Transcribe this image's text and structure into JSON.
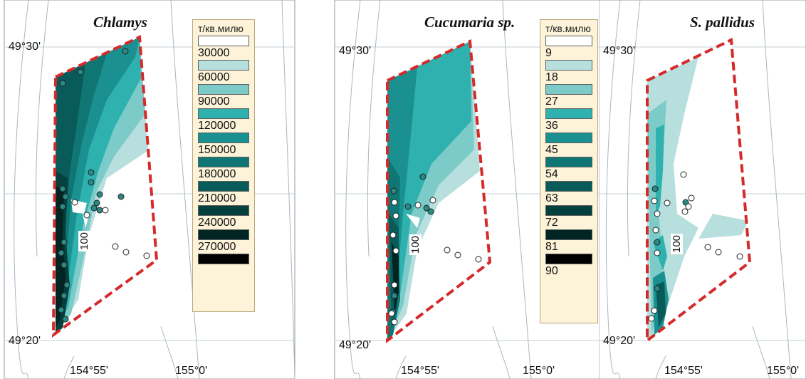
{
  "panels": [
    {
      "title": "Chlamys",
      "lat_top": "49°30'",
      "lat_bottom": "49°20'",
      "lon_left": "154°55'",
      "lon_right": "155°0'",
      "isobath": "100",
      "legend": {
        "unit": "т/кв.милю",
        "items": [
          {
            "label": "30000",
            "color": "#ffffff"
          },
          {
            "label": "60000",
            "color": "#b7dfdd"
          },
          {
            "label": "90000",
            "color": "#7ccbc9"
          },
          {
            "label": "120000",
            "color": "#2fb1af"
          },
          {
            "label": "150000",
            "color": "#1a9090"
          },
          {
            "label": "180000",
            "color": "#0f7674"
          },
          {
            "label": "210000",
            "color": "#085b58"
          },
          {
            "label": "240000",
            "color": "#04403d"
          },
          {
            "label": "270000",
            "color": "#012522"
          },
          {
            "label": "",
            "color": "#000000"
          }
        ]
      }
    },
    {
      "title": "Cucumaria sp.",
      "lat_top": "49°30'",
      "lat_bottom": "49°20'",
      "lon_left": "154°55'",
      "lon_right": "155°0'",
      "isobath": "100",
      "legend": {
        "unit": "т/кв.милю",
        "items": [
          {
            "label": "9",
            "color": "#ffffff"
          },
          {
            "label": "18",
            "color": "#b7dfdd"
          },
          {
            "label": "27",
            "color": "#7ccbc9"
          },
          {
            "label": "36",
            "color": "#2fb1af"
          },
          {
            "label": "45",
            "color": "#1a9090"
          },
          {
            "label": "54",
            "color": "#0f7674"
          },
          {
            "label": "63",
            "color": "#085b58"
          },
          {
            "label": "72",
            "color": "#04403d"
          },
          {
            "label": "81",
            "color": "#012522"
          },
          {
            "label": "90",
            "color": "#000000"
          }
        ]
      }
    },
    {
      "title": "S. pallidus",
      "lat_top": "49°30'",
      "lat_bottom": "49°20'",
      "lon_left": "154°55'",
      "lon_right": "155°0'",
      "isobath": "100"
    }
  ],
  "colors": {
    "survey_boundary": "#d42a2a",
    "contour_line": "#a9b7c2",
    "frame": "#8e9aa3"
  }
}
